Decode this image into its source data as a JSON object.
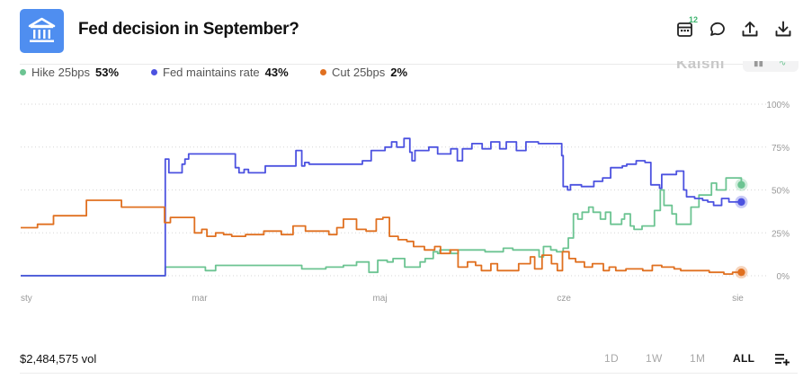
{
  "header": {
    "title": "Fed decision in September?",
    "logo_icon": "bank-building-icon",
    "calendar_badge": "12",
    "icons": [
      "calendar-icon",
      "comment-icon",
      "share-upload-icon",
      "download-icon"
    ]
  },
  "legend": [
    {
      "name": "Hike 25bps",
      "pct": "53%",
      "color": "#6cc492"
    },
    {
      "name": "Fed maintains rate",
      "pct": "43%",
      "color": "#4c52e0"
    },
    {
      "name": "Cut 25bps",
      "pct": "2%",
      "color": "#e07020"
    }
  ],
  "brand": "Kalshi",
  "footer": {
    "volume": "$2,484,575 vol",
    "ranges": [
      {
        "label": "1D",
        "active": false
      },
      {
        "label": "1W",
        "active": false
      },
      {
        "label": "1M",
        "active": false
      },
      {
        "label": "ALL",
        "active": true
      }
    ],
    "menu_icon": "playlist-add-icon"
  },
  "chart_data": {
    "type": "line",
    "title": "",
    "xlabel": "",
    "ylabel": "",
    "ylim": [
      0,
      100
    ],
    "y_ticks": [
      "0%",
      "25%",
      "50%",
      "75%",
      "100%"
    ],
    "x_ticks": [
      "sty",
      "mar",
      "maj",
      "cze",
      "sie"
    ],
    "x_domain": [
      0,
      100
    ],
    "x_tick_positions": [
      0,
      24.5,
      49.2,
      74.4,
      99
    ],
    "grid": "horizontal dotted",
    "series": [
      {
        "name": "Fed maintains rate",
        "color": "#4c52e0",
        "end_dot": true,
        "x": [
          0,
          19.7,
          19.8,
          20.3,
          20.8,
          22.1,
          22.5,
          23.0,
          23.7,
          28.8,
          29.4,
          29.9,
          30.6,
          31.2,
          32.3,
          33.5,
          34.4,
          37.1,
          37.7,
          38.5,
          38.9,
          39.5,
          40.4,
          43.5,
          44.0,
          45.8,
          46.8,
          48.0,
          49.9,
          50.8,
          51.5,
          52.5,
          53.3,
          53.6,
          54.0,
          55.9,
          57.1,
          58.9,
          59.8,
          60.5,
          61.8,
          63.2,
          64.4,
          65.6,
          66.5,
          67.9,
          69.2,
          70.9,
          72.6,
          73.7,
          74.1,
          74.3,
          74.9,
          75.3,
          76.8,
          77.3,
          78.5,
          79.7,
          80.8,
          82.4,
          83.0,
          84.3,
          85.5,
          86.3,
          87.5,
          87.8,
          89.8,
          90.8,
          91.2,
          92.3,
          93.4,
          94.1,
          94.9,
          96.0,
          97.0,
          98.7
        ],
        "y": [
          0,
          0,
          68,
          60,
          60,
          65,
          68,
          71,
          71,
          71,
          63,
          60,
          62,
          60,
          60,
          64,
          64,
          64,
          73,
          64,
          66,
          65,
          65,
          65,
          65,
          65,
          67,
          73,
          75,
          78,
          75,
          80,
          72,
          67,
          73,
          75,
          71,
          74,
          67,
          74,
          77,
          74,
          78,
          74,
          78,
          73,
          78,
          77,
          77,
          77,
          70,
          52,
          50,
          53,
          52,
          52,
          55,
          57,
          63,
          64,
          65,
          67,
          66,
          53,
          51,
          59,
          61,
          50,
          46,
          45,
          44,
          43,
          41,
          45,
          43,
          43
        ]
      },
      {
        "name": "Hike 25bps",
        "color": "#6cc492",
        "end_dot": true,
        "x": [
          0,
          19.7,
          19.8,
          21.1,
          22.1,
          24.6,
          25.3,
          26.1,
          26.7,
          27.8,
          29.9,
          32.7,
          34.4,
          35.8,
          38.5,
          40.2,
          41.6,
          41.8,
          43.1,
          44.2,
          46.0,
          47.7,
          48.9,
          50.2,
          51.0,
          52.6,
          54.7,
          55.4,
          56.5,
          57.1,
          57.4,
          58.9,
          59.9,
          63.6,
          65.2,
          66.1,
          67.4,
          69.3,
          71.0,
          71.6,
          72.6,
          73.4,
          74.3,
          75.0,
          75.7,
          76.3,
          76.9,
          77.8,
          78.4,
          79.4,
          80.1,
          80.8,
          82.3,
          82.7,
          83.5,
          84.0,
          85.1,
          86.8,
          87.6,
          88.1,
          89.2,
          89.8,
          91.8,
          92.9,
          94.6,
          95.3,
          96.6,
          97.6,
          98.7
        ],
        "y": [
          0,
          0,
          5,
          5,
          5,
          5,
          3,
          3,
          6,
          6,
          6,
          6,
          6,
          6,
          4,
          4,
          4,
          5,
          5,
          6,
          8,
          2,
          9,
          8,
          10,
          5,
          8,
          10,
          14,
          13,
          15,
          13,
          15,
          14,
          14,
          16,
          15,
          15,
          11,
          17,
          15,
          14,
          16,
          22,
          36,
          33,
          37,
          40,
          37,
          33,
          37,
          30,
          33,
          36,
          29,
          27,
          29,
          38,
          50,
          41,
          36,
          30,
          40,
          47,
          54,
          50,
          57,
          57,
          53
        ]
      },
      {
        "name": "Cut 25bps",
        "color": "#e07020",
        "end_dot": true,
        "x": [
          0,
          1.2,
          2.3,
          4.5,
          8.5,
          9.0,
          13.3,
          13.8,
          19.7,
          20.5,
          23.0,
          23.8,
          24.8,
          25.5,
          26.7,
          27.8,
          28.9,
          30.8,
          33.3,
          35.7,
          37.3,
          39.0,
          42.2,
          43.3,
          44.2,
          46.0,
          47.3,
          48.7,
          49.6,
          50.5,
          51.7,
          52.9,
          53.8,
          55.3,
          56.7,
          57.5,
          58.8,
          59.9,
          61.2,
          62.3,
          63.1,
          64.4,
          65.3,
          67.1,
          68.2,
          69.8,
          70.4,
          71.4,
          72.7,
          73.5,
          74.2,
          75.1,
          76.0,
          77.2,
          78.3,
          79.8,
          80.6,
          81.5,
          82.9,
          84.1,
          85.2,
          86.5,
          87.8,
          89.5,
          90.4,
          91.6,
          93.0,
          94.3,
          96.3,
          97.5,
          98.7
        ],
        "y": [
          28,
          28,
          30,
          35,
          35,
          44,
          44,
          40,
          31,
          34,
          34,
          25,
          27,
          23,
          25,
          24,
          23,
          24,
          26,
          24,
          29,
          26,
          24,
          28,
          33,
          27,
          26,
          33,
          34,
          23,
          21,
          20,
          17,
          15,
          17,
          13,
          15,
          5,
          8,
          6,
          3,
          7,
          3,
          3,
          7,
          11,
          4,
          12,
          7,
          3,
          14,
          10,
          8,
          5,
          7,
          3,
          5,
          3,
          4,
          4,
          3,
          6,
          5,
          4,
          3,
          3,
          3,
          2,
          1,
          2,
          2
        ]
      }
    ]
  }
}
